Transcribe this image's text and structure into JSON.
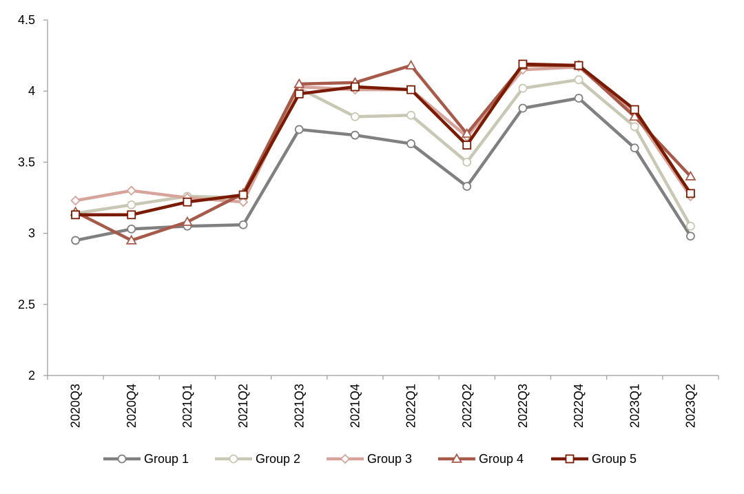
{
  "chart_data": {
    "type": "line",
    "title": "",
    "xlabel": "",
    "ylabel": "",
    "categories": [
      "2020Q3",
      "2020Q4",
      "2021Q1",
      "2021Q2",
      "2021Q3",
      "2021Q4",
      "2022Q1",
      "2022Q2",
      "2022Q3",
      "2022Q4",
      "2023Q1",
      "2023Q2"
    ],
    "ylim": [
      2,
      4.5
    ],
    "yticks": [
      "2",
      "2.5",
      "3",
      "3.5",
      "4",
      "4.5"
    ],
    "grid": false,
    "legend_position": "bottom",
    "series": [
      {
        "name": "Group 1",
        "marker": "circle",
        "color": "#808080",
        "values": [
          2.95,
          3.03,
          3.05,
          3.06,
          3.73,
          3.69,
          3.63,
          3.33,
          3.88,
          3.95,
          3.6,
          2.98
        ]
      },
      {
        "name": "Group 2",
        "marker": "circle",
        "color": "#c9c8b4",
        "values": [
          3.14,
          3.2,
          3.26,
          3.25,
          4.02,
          3.82,
          3.83,
          3.5,
          4.02,
          4.08,
          3.75,
          3.05
        ]
      },
      {
        "name": "Group 3",
        "marker": "diamond",
        "color": "#d6a49b",
        "values": [
          3.23,
          3.3,
          3.25,
          3.22,
          4.03,
          4.01,
          4.01,
          3.68,
          4.15,
          4.17,
          3.84,
          3.26
        ]
      },
      {
        "name": "Group 4",
        "marker": "triangle",
        "color": "#a85a4a",
        "values": [
          3.15,
          2.95,
          3.08,
          3.28,
          4.05,
          4.06,
          4.18,
          3.7,
          4.18,
          4.18,
          3.82,
          3.4
        ]
      },
      {
        "name": "Group 5",
        "marker": "square",
        "color": "#7a1a00",
        "values": [
          3.13,
          3.13,
          3.22,
          3.27,
          3.98,
          4.03,
          4.01,
          3.62,
          4.19,
          4.18,
          3.87,
          3.28
        ]
      }
    ]
  }
}
